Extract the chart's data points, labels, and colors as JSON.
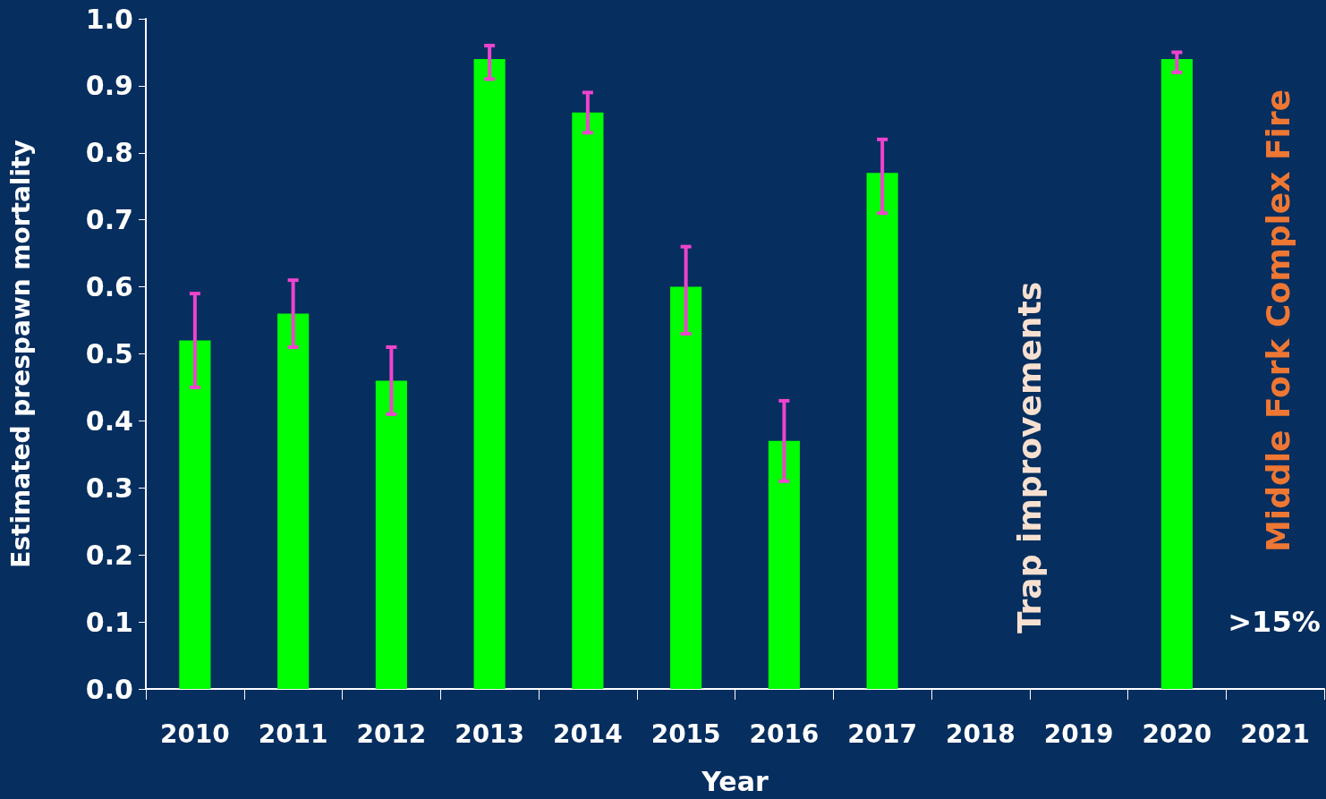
{
  "chart_data": {
    "type": "bar",
    "xlabel": "Year",
    "ylabel": "Estimated prespawn mortality",
    "categories": [
      "2010",
      "2011",
      "2012",
      "2013",
      "2014",
      "2015",
      "2016",
      "2017",
      "2018",
      "2019",
      "2020",
      "2021"
    ],
    "values": [
      0.52,
      0.56,
      0.46,
      0.94,
      0.86,
      0.6,
      0.37,
      0.77,
      null,
      null,
      0.94,
      null
    ],
    "errors": [
      [
        0.45,
        0.59
      ],
      [
        0.51,
        0.61
      ],
      [
        0.41,
        0.51
      ],
      [
        0.91,
        0.96
      ],
      [
        0.83,
        0.89
      ],
      [
        0.53,
        0.66
      ],
      [
        0.31,
        0.43
      ],
      [
        0.71,
        0.82
      ],
      null,
      null,
      [
        0.92,
        0.95
      ],
      null
    ],
    "color": "#00ff00",
    "ylim": [
      0,
      1
    ],
    "yticks": [
      {
        "value": 0,
        "label": "0.0"
      },
      0.1,
      0.2,
      0.3,
      0.4,
      0.5,
      0.6,
      0.7,
      0.8,
      0.9,
      {
        "value": 1,
        "label": "1.0"
      }
    ],
    "grid": false,
    "annotations": [
      "Trap improvements",
      "Middle Fork Complex Fire",
      ">15%"
    ]
  }
}
